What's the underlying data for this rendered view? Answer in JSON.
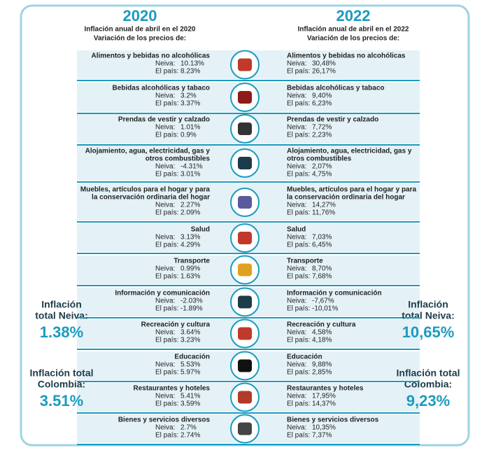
{
  "header": {
    "left": {
      "year": "2020",
      "subtitle": [
        "Inflación anual de abril en el 2020",
        "Variación de los precios de:"
      ]
    },
    "right": {
      "year": "2022",
      "subtitle": [
        "Inflación anual de abril en el 2022",
        "Variación de los precios de:"
      ]
    }
  },
  "labels": {
    "neiva": "Neiva:",
    "pais": "El país:"
  },
  "rows": [
    {
      "name": [
        "Alimentos y bebidas no alcohólicas"
      ],
      "neiva_2020": "10.13%",
      "pais_2020": "8.23%",
      "neiva_2022": "30,48%",
      "pais_2022": "26,17%"
    },
    {
      "name": [
        "Bebidas alcohólicas y tabaco"
      ],
      "neiva_2020": "3.2%",
      "pais_2020": "3.37%",
      "neiva_2022": "9,40%",
      "pais_2022": "6,23%"
    },
    {
      "name": [
        "Prendas de vestir y calzado"
      ],
      "neiva_2020": "1.01%",
      "pais_2020": "0.9%",
      "neiva_2022": "7,72%",
      "pais_2022": "2,23%"
    },
    {
      "name": [
        "Alojamiento, agua, electricidad, gas y",
        "otros combustibles"
      ],
      "neiva_2020": "-4.31%",
      "pais_2020": "3.01%",
      "neiva_2022": "2,07%",
      "pais_2022": "4,75%"
    },
    {
      "name": [
        "Muebles, artículos para el hogar y para",
        "la conservación ordinaria del hogar"
      ],
      "neiva_2020": "2.27%",
      "pais_2020": "2.09%",
      "neiva_2022": "14,27%",
      "pais_2022": "11,76%"
    },
    {
      "name": [
        "Salud"
      ],
      "neiva_2020": "3.13%",
      "pais_2020": "4.29%",
      "neiva_2022": "7,03%",
      "pais_2022": "6,45%"
    },
    {
      "name": [
        "Transporte"
      ],
      "neiva_2020": "0.99%",
      "pais_2020": "1.63%",
      "neiva_2022": "8,70%",
      "pais_2022": "7,68%"
    },
    {
      "name": [
        "Información y comunicación"
      ],
      "neiva_2020": "-2.03%",
      "pais_2020": "-1.89%",
      "neiva_2022": "-7,67%",
      "pais_2022": "-10,01%"
    },
    {
      "name": [
        "Recreación y cultura"
      ],
      "neiva_2020": "3.64%",
      "pais_2020": "3.23%",
      "neiva_2022": "4,58%",
      "pais_2022": "4,18%"
    },
    {
      "name": [
        "Educación"
      ],
      "neiva_2020": "5.53%",
      "pais_2020": "5.97%",
      "neiva_2022": "9,88%",
      "pais_2022": "2,85%"
    },
    {
      "name": [
        "Restaurantes y hoteles"
      ],
      "neiva_2020": "5.41%",
      "pais_2020": "3.59%",
      "neiva_2022": "17,95%",
      "pais_2022": "14,37%"
    },
    {
      "name": [
        "Bienes y servicios diversos"
      ],
      "neiva_2020": "2.7%",
      "pais_2020": "2.74%",
      "neiva_2022": "10,35%",
      "pais_2022": "7,37%"
    }
  ],
  "totals": {
    "neiva_2020": {
      "label": [
        "Inflación",
        "total Neiva:"
      ],
      "value": "1.38%"
    },
    "colombia_2020": {
      "label": [
        "Inflación total",
        "Colombia:"
      ],
      "value": "3.51%"
    },
    "neiva_2022": {
      "label": [
        "Inflación",
        "total Neiva:"
      ],
      "value": "10,65%"
    },
    "colombia_2022": {
      "label": [
        "Inflación total",
        "Colombia:"
      ],
      "value": "9,23%"
    }
  }
}
